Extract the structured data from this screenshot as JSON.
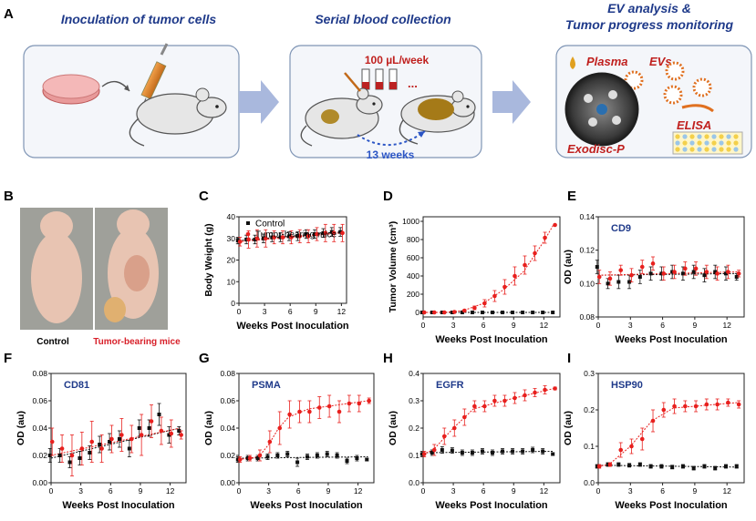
{
  "panel_a": {
    "letter": "A",
    "step1_title": "Inoculation of tumor cells",
    "step2_title": "Serial blood collection",
    "step2_volume": "100 µL/week",
    "step2_dots": "...",
    "step2_duration": "13 weeks",
    "step3_title_1": "EV analysis &",
    "step3_title_2": "Tumor progress monitoring",
    "step3_plasma": "Plasma",
    "step3_evs": "EVs",
    "step3_elisa": "ELISA",
    "step3_disc": "Exodisc-P"
  },
  "panel_b": {
    "letter": "B",
    "control_label": "Control",
    "tumor_label": "Tumor-bearing mice"
  },
  "colors": {
    "control": "#111111",
    "tumor": "#e8201e",
    "title_blue": "#1f3a8a",
    "accent_red": "#c0201e"
  },
  "chart_data": [
    {
      "id": "C",
      "type": "line",
      "xlabel": "Weeks Post Inoculation",
      "ylabel": "Body Weight (g)",
      "xlim": [
        0,
        12.6
      ],
      "ylim": [
        0,
        40
      ],
      "xticks": [
        "0",
        "3",
        "6",
        "9",
        "12"
      ],
      "yticks": [
        "0",
        "10",
        "20",
        "30",
        "40"
      ],
      "legend": [
        "Control",
        "Tumor-bearing mice"
      ],
      "series": [
        {
          "name": "Control",
          "x": [
            0,
            1,
            2,
            3,
            4,
            5,
            6,
            7,
            8,
            9,
            10,
            11,
            12
          ],
          "y": [
            29,
            29.5,
            29.5,
            30,
            30.5,
            30.5,
            31,
            31,
            32,
            32,
            32.5,
            33,
            33
          ],
          "err": [
            1.5,
            2,
            2,
            2,
            2,
            2,
            2,
            2,
            2,
            2,
            2,
            2,
            2
          ]
        },
        {
          "name": "Tumor-bearing mice",
          "x": [
            0,
            1,
            2,
            3,
            4,
            5,
            6,
            7,
            8,
            9,
            10,
            11,
            12
          ],
          "y": [
            28.5,
            29.5,
            30,
            30,
            30.5,
            30.5,
            30.5,
            31,
            31,
            32,
            32.5,
            32.5,
            32.5
          ],
          "err": [
            2,
            4,
            4,
            4,
            3,
            3,
            3,
            3,
            3,
            3,
            4,
            4,
            4
          ]
        }
      ],
      "fits": {
        "Control": [
          [
            0,
            29
          ],
          [
            12,
            33
          ]
        ],
        "Tumor-bearing mice": [
          [
            0,
            28.5
          ],
          [
            12,
            32.5
          ]
        ]
      }
    },
    {
      "id": "D",
      "type": "line",
      "xlabel": "Weeks Post Inoculation",
      "ylabel": "Tumor Volume (cm³)",
      "xlim": [
        0,
        13.6
      ],
      "ylim": [
        -50,
        1050
      ],
      "xticks": [
        "0",
        "3",
        "6",
        "9",
        "12"
      ],
      "yticks": [
        "0",
        "200",
        "400",
        "600",
        "800",
        "1000"
      ],
      "series": [
        {
          "name": "Control",
          "x": [
            0,
            1,
            2,
            3,
            4,
            5,
            6,
            7,
            8,
            9,
            10,
            11,
            12,
            13
          ],
          "y": [
            0,
            0,
            0,
            0,
            0,
            0,
            0,
            0,
            0,
            0,
            0,
            0,
            0,
            0
          ],
          "err": [
            0,
            0,
            0,
            0,
            0,
            0,
            0,
            0,
            0,
            0,
            0,
            0,
            0,
            0
          ]
        },
        {
          "name": "Tumor-bearing mice",
          "x": [
            0,
            1,
            2,
            3,
            4,
            5,
            6,
            7,
            8,
            9,
            10,
            11,
            12,
            13
          ],
          "y": [
            0,
            0,
            0,
            5,
            20,
            50,
            100,
            180,
            280,
            400,
            520,
            650,
            820,
            960
          ],
          "err": [
            0,
            0,
            0,
            5,
            10,
            20,
            40,
            60,
            80,
            100,
            100,
            80,
            60,
            0
          ]
        }
      ],
      "fits": {
        "Control": [
          [
            0,
            0
          ],
          [
            13,
            0
          ]
        ],
        "Tumor-bearing mice": [
          [
            0,
            0
          ],
          [
            2,
            0
          ],
          [
            4,
            20
          ],
          [
            6,
            100
          ],
          [
            8,
            250
          ],
          [
            10,
            450
          ],
          [
            12,
            780
          ],
          [
            13,
            970
          ]
        ]
      }
    },
    {
      "id": "E",
      "type": "line",
      "title": "CD9",
      "xlabel": "Weeks Post Inoculation",
      "ylabel": "OD (au)",
      "xlim": [
        0,
        13.6
      ],
      "ylim": [
        0.08,
        0.14
      ],
      "xticks": [
        "0",
        "3",
        "6",
        "9",
        "12"
      ],
      "yticks": [
        "0.08",
        "0.10",
        "0.12",
        "0.14"
      ],
      "series": [
        {
          "name": "Control",
          "x": [
            0,
            1,
            2,
            3,
            4,
            5,
            6,
            7,
            8,
            9,
            10,
            11,
            12,
            13
          ],
          "y": [
            0.11,
            0.1,
            0.101,
            0.101,
            0.104,
            0.106,
            0.106,
            0.107,
            0.106,
            0.107,
            0.105,
            0.107,
            0.106,
            0.104
          ],
          "err": [
            0.004,
            0.003,
            0.004,
            0.004,
            0.004,
            0.004,
            0.004,
            0.004,
            0.004,
            0.004,
            0.004,
            0.004,
            0.004,
            0.002
          ]
        },
        {
          "name": "Tumor-bearing mice",
          "x": [
            0,
            1,
            2,
            3,
            4,
            5,
            6,
            7,
            8,
            9,
            10,
            11,
            12,
            13
          ],
          "y": [
            0.104,
            0.103,
            0.108,
            0.105,
            0.11,
            0.112,
            0.106,
            0.107,
            0.109,
            0.109,
            0.107,
            0.106,
            0.107,
            0.106
          ],
          "err": [
            0.004,
            0.004,
            0.003,
            0.004,
            0.004,
            0.004,
            0.004,
            0.004,
            0.004,
            0.004,
            0.004,
            0.004,
            0.004,
            0.002
          ]
        }
      ],
      "fits": {
        "Control": [
          [
            0,
            0.105
          ],
          [
            13,
            0.106
          ]
        ],
        "Tumor-bearing mice": [
          [
            0,
            0.105
          ],
          [
            13,
            0.107
          ]
        ]
      }
    },
    {
      "id": "F",
      "type": "line",
      "title": "CD81",
      "xlabel": "Weeks Post Inoculation",
      "ylabel": "OD (au)",
      "xlim": [
        0,
        13.6
      ],
      "ylim": [
        0,
        0.08
      ],
      "xticks": [
        "0",
        "3",
        "6",
        "9",
        "12"
      ],
      "yticks": [
        "0.00",
        "0.02",
        "0.04",
        "0.06",
        "0.08"
      ],
      "series": [
        {
          "name": "Control",
          "x": [
            0,
            1,
            2,
            3,
            4,
            5,
            6,
            7,
            8,
            9,
            10,
            11,
            12,
            13
          ],
          "y": [
            0.02,
            0.02,
            0.015,
            0.018,
            0.022,
            0.028,
            0.03,
            0.032,
            0.025,
            0.04,
            0.04,
            0.05,
            0.035,
            0.038
          ],
          "err": [
            0.005,
            0.005,
            0.004,
            0.005,
            0.005,
            0.006,
            0.006,
            0.006,
            0.006,
            0.006,
            0.006,
            0.008,
            0.006,
            0.003
          ]
        },
        {
          "name": "Tumor-bearing mice",
          "x": [
            0,
            1,
            2,
            3,
            4,
            5,
            6,
            7,
            8,
            9,
            10,
            11,
            12,
            13
          ],
          "y": [
            0.03,
            0.025,
            0.02,
            0.025,
            0.03,
            0.025,
            0.032,
            0.035,
            0.032,
            0.035,
            0.045,
            0.038,
            0.036,
            0.035
          ],
          "err": [
            0.01,
            0.01,
            0.015,
            0.012,
            0.015,
            0.01,
            0.01,
            0.012,
            0.01,
            0.015,
            0.012,
            0.01,
            0.01,
            0.003
          ]
        }
      ],
      "fits": {
        "Control": [
          [
            0,
            0.018
          ],
          [
            13,
            0.04
          ]
        ],
        "Tumor-bearing mice": [
          [
            0,
            0.02
          ],
          [
            13,
            0.04
          ]
        ]
      }
    },
    {
      "id": "G",
      "type": "line",
      "title": "PSMA",
      "xlabel": "Weeks Post Inoculation",
      "ylabel": "OD (au)",
      "xlim": [
        0,
        13.6
      ],
      "ylim": [
        0,
        0.08
      ],
      "xticks": [
        "0",
        "3",
        "6",
        "9",
        "12"
      ],
      "yticks": [
        "0.00",
        "0.02",
        "0.04",
        "0.06",
        "0.08"
      ],
      "series": [
        {
          "name": "Control",
          "x": [
            0,
            1,
            2,
            3,
            4,
            5,
            6,
            7,
            8,
            9,
            10,
            11,
            12,
            13
          ],
          "y": [
            0.017,
            0.018,
            0.018,
            0.019,
            0.02,
            0.021,
            0.015,
            0.019,
            0.02,
            0.021,
            0.02,
            0.016,
            0.018,
            0.017
          ],
          "err": [
            0.002,
            0.002,
            0.002,
            0.002,
            0.002,
            0.002,
            0.003,
            0.002,
            0.002,
            0.002,
            0.002,
            0.002,
            0.002,
            0.001
          ]
        },
        {
          "name": "Tumor-bearing mice",
          "x": [
            0,
            1,
            2,
            3,
            4,
            5,
            6,
            7,
            8,
            9,
            10,
            11,
            12,
            13
          ],
          "y": [
            0.017,
            0.018,
            0.02,
            0.03,
            0.04,
            0.05,
            0.052,
            0.052,
            0.055,
            0.056,
            0.052,
            0.058,
            0.058,
            0.06
          ],
          "err": [
            0.002,
            0.002,
            0.004,
            0.008,
            0.012,
            0.01,
            0.008,
            0.008,
            0.008,
            0.008,
            0.008,
            0.006,
            0.006,
            0.002
          ]
        }
      ],
      "fits": {
        "Control": [
          [
            0,
            0.018
          ],
          [
            13,
            0.019
          ]
        ],
        "Tumor-bearing mice": [
          [
            0,
            0.017
          ],
          [
            2,
            0.019
          ],
          [
            3,
            0.028
          ],
          [
            4,
            0.04
          ],
          [
            5,
            0.048
          ],
          [
            7,
            0.054
          ],
          [
            10,
            0.057
          ],
          [
            13,
            0.06
          ]
        ]
      }
    },
    {
      "id": "H",
      "type": "line",
      "title": "EGFR",
      "xlabel": "Weeks Post Inoculation",
      "ylabel": "OD (au)",
      "xlim": [
        0,
        13.6
      ],
      "ylim": [
        0,
        0.4
      ],
      "xticks": [
        "0",
        "3",
        "6",
        "9",
        "12"
      ],
      "yticks": [
        "0.0",
        "0.1",
        "0.2",
        "0.3",
        "0.4"
      ],
      "series": [
        {
          "name": "Control",
          "x": [
            0,
            1,
            2,
            3,
            4,
            5,
            6,
            7,
            8,
            9,
            10,
            11,
            12,
            13
          ],
          "y": [
            0.105,
            0.11,
            0.12,
            0.118,
            0.11,
            0.11,
            0.115,
            0.11,
            0.115,
            0.115,
            0.115,
            0.12,
            0.115,
            0.105
          ],
          "err": [
            0.01,
            0.01,
            0.012,
            0.01,
            0.01,
            0.01,
            0.01,
            0.01,
            0.01,
            0.01,
            0.01,
            0.01,
            0.01,
            0.005
          ]
        },
        {
          "name": "Tumor-bearing mice",
          "x": [
            0,
            1,
            2,
            3,
            4,
            5,
            6,
            7,
            8,
            9,
            10,
            11,
            12,
            13
          ],
          "y": [
            0.105,
            0.12,
            0.17,
            0.2,
            0.24,
            0.28,
            0.28,
            0.3,
            0.3,
            0.31,
            0.32,
            0.33,
            0.34,
            0.345
          ],
          "err": [
            0.01,
            0.02,
            0.03,
            0.03,
            0.03,
            0.02,
            0.02,
            0.02,
            0.02,
            0.02,
            0.02,
            0.015,
            0.015,
            0.005
          ]
        }
      ],
      "fits": {
        "Control": [
          [
            0,
            0.11
          ],
          [
            13,
            0.115
          ]
        ],
        "Tumor-bearing mice": [
          [
            0,
            0.105
          ],
          [
            1,
            0.12
          ],
          [
            3,
            0.2
          ],
          [
            5,
            0.27
          ],
          [
            8,
            0.3
          ],
          [
            13,
            0.345
          ]
        ]
      }
    },
    {
      "id": "I",
      "type": "line",
      "title": "HSP90",
      "xlabel": "Weeks Post Inoculation",
      "ylabel": "OD (au)",
      "xlim": [
        0,
        13.6
      ],
      "ylim": [
        0,
        0.3
      ],
      "xticks": [
        "0",
        "3",
        "6",
        "9",
        "12"
      ],
      "yticks": [
        "0.0",
        "0.1",
        "0.2",
        "0.3"
      ],
      "series": [
        {
          "name": "Control",
          "x": [
            0,
            1,
            2,
            3,
            4,
            5,
            6,
            7,
            8,
            9,
            10,
            11,
            12,
            13
          ],
          "y": [
            0.045,
            0.05,
            0.05,
            0.048,
            0.05,
            0.045,
            0.045,
            0.043,
            0.045,
            0.04,
            0.045,
            0.04,
            0.045,
            0.045
          ],
          "err": [
            0.005,
            0.005,
            0.005,
            0.005,
            0.005,
            0.005,
            0.005,
            0.005,
            0.005,
            0.005,
            0.005,
            0.005,
            0.005,
            0.005
          ]
        },
        {
          "name": "Tumor-bearing mice",
          "x": [
            0,
            1,
            2,
            3,
            4,
            5,
            6,
            7,
            8,
            9,
            10,
            11,
            12,
            13
          ],
          "y": [
            0.045,
            0.05,
            0.09,
            0.1,
            0.12,
            0.17,
            0.2,
            0.21,
            0.21,
            0.21,
            0.215,
            0.215,
            0.22,
            0.215
          ],
          "err": [
            0.005,
            0.005,
            0.02,
            0.02,
            0.03,
            0.03,
            0.02,
            0.02,
            0.015,
            0.015,
            0.015,
            0.015,
            0.01,
            0.01
          ]
        }
      ],
      "fits": {
        "Control": [
          [
            0,
            0.048
          ],
          [
            13,
            0.043
          ]
        ],
        "Tumor-bearing mice": [
          [
            0,
            0.045
          ],
          [
            1,
            0.05
          ],
          [
            3,
            0.1
          ],
          [
            5,
            0.17
          ],
          [
            7,
            0.205
          ],
          [
            13,
            0.22
          ]
        ]
      }
    }
  ]
}
